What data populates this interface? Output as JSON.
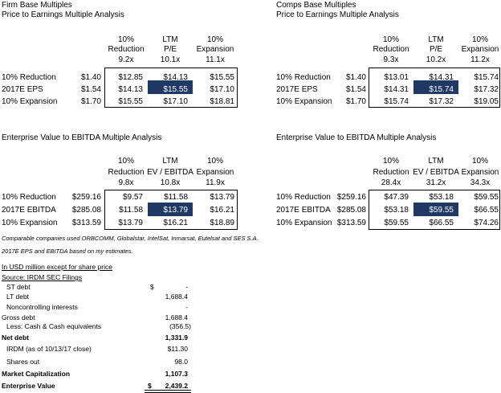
{
  "firm": {
    "title1": "Firm Base Multiples",
    "title2": "Price to Earnings Multiple Analysis",
    "cols": [
      {
        "l1": "10%",
        "l2": "Reduction",
        "mult": "9.2x"
      },
      {
        "l1": "LTM",
        "l2": "P/E",
        "mult": "10.1x"
      },
      {
        "l1": "10%",
        "l2": "Expansion",
        "mult": "11.1x"
      }
    ],
    "rows": [
      {
        "label": "10% Reduction",
        "base": "$1.40",
        "v": [
          "$12.85",
          "$14.13",
          "$15.55"
        ]
      },
      {
        "label": "2017E EPS",
        "base": "$1.54",
        "v": [
          "$14.13",
          "$15.55",
          "$17.10"
        ]
      },
      {
        "label": "10% Expansion",
        "base": "$1.70",
        "v": [
          "$15.55",
          "$17.10",
          "$18.81"
        ]
      }
    ]
  },
  "comps": {
    "title1": "Comps Base Multiples",
    "title2": "Price to Earnings Multiple Analysis",
    "cols": [
      {
        "l1": "10%",
        "l2": "Reduction",
        "mult": "9.3x"
      },
      {
        "l1": "LTM",
        "l2": "P/E",
        "mult": "10.2x"
      },
      {
        "l1": "10%",
        "l2": "Expansion",
        "mult": "11.2x"
      }
    ],
    "rows": [
      {
        "label": "10% Reduction",
        "base": "$1.40",
        "v": [
          "$13.01",
          "$14.31",
          "$15.74"
        ]
      },
      {
        "label": "2017E EPS",
        "base": "$1.54",
        "v": [
          "$14.31",
          "$15.74",
          "$17.32"
        ]
      },
      {
        "label": "10% Expansion",
        "base": "$1.70",
        "v": [
          "$15.74",
          "$17.32",
          "$19.05"
        ]
      }
    ]
  },
  "ev_firm": {
    "title": "Enterprise Value to EBITDA Multiple Analysis",
    "cols": [
      {
        "l1": "10%",
        "l2": "Reduction",
        "mult": "9.8x"
      },
      {
        "l1": "LTM",
        "l2": "EV / EBITDA",
        "mult": "10.8x"
      },
      {
        "l1": "10%",
        "l2": "Expansion",
        "mult": "11.9x"
      }
    ],
    "rows": [
      {
        "label": "10% Reduction",
        "base": "$259.16",
        "v": [
          "$9.57",
          "$11.58",
          "$13.79"
        ]
      },
      {
        "label": "2017E EBITDA",
        "base": "$285.08",
        "v": [
          "$11.58",
          "$13.79",
          "$16.21"
        ]
      },
      {
        "label": "10% Expansion",
        "base": "$313.59",
        "v": [
          "$13.79",
          "$16.21",
          "$18.89"
        ]
      }
    ]
  },
  "ev_comps": {
    "title": "Enterprise Value to EBITDA Multiple Analysis",
    "cols": [
      {
        "l1": "10%",
        "l2": "Reduction",
        "mult": "28.4x"
      },
      {
        "l1": "LTM",
        "l2": "EV / EBITDA",
        "mult": "31.2x"
      },
      {
        "l1": "10%",
        "l2": "Expansion",
        "mult": "34.3x"
      }
    ],
    "rows": [
      {
        "label": "10% Reduction",
        "base": "$259.16",
        "v": [
          "$47.39",
          "$53.18",
          "$59.55"
        ]
      },
      {
        "label": "2017E EBITDA",
        "base": "$285.08",
        "v": [
          "$53.18",
          "$59.55",
          "$66.55"
        ]
      },
      {
        "label": "10% Expansion",
        "base": "$313.59",
        "v": [
          "$59.55",
          "$66.55",
          "$74.26"
        ]
      }
    ]
  },
  "notes": {
    "line1": "Comparable companies used ORBCOMM, Globalstar, IntelSat, Inmarsat, Eutelsat and SES S.A.",
    "line2": "2017E EPS and EBITDA based on my estimates."
  },
  "ev": {
    "header": "In USD million except for share price",
    "source": "Source: IRDM SEC Filings",
    "st_debt_label": "ST debt",
    "st_debt_currency": "$",
    "st_debt_value": "-",
    "lt_debt_label": "LT debt",
    "lt_debt_value": "1,688.4",
    "nci_label": "Noncontrolling interests",
    "nci_value": "-",
    "gross_label": "Gross debt",
    "gross_value": "1,688.4",
    "cash_label": "Less: Cash & Cash equivalents",
    "cash_value": "(356.5)",
    "net_label": "Net debt",
    "net_value": "1,331.9",
    "price_label": "IRDM (as of 10/13/17 close)",
    "price_value": "$11.30",
    "shares_label": "Shares out",
    "shares_value": "98.0",
    "mcap_label": "Market Capitalization",
    "mcap_value": "1,107.3",
    "ev_label": "Enterprise Value",
    "ev_currency": "$",
    "ev_value": "2,439.2"
  }
}
